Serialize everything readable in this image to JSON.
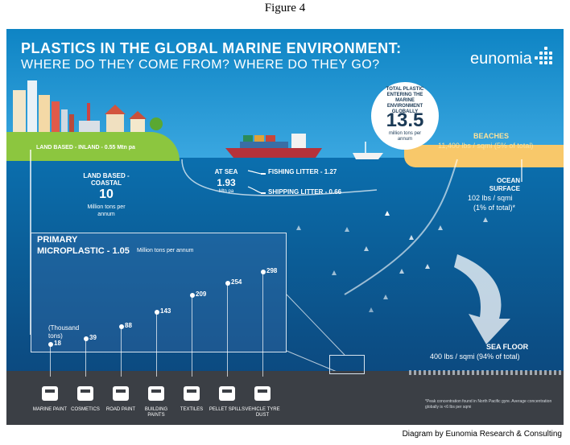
{
  "figure_label": "Figure 4",
  "title": {
    "line1": "PLASTICS IN THE GLOBAL MARINE ENVIRONMENT:",
    "line2": "WHERE DO THEY COME FROM? WHERE DO THEY GO?"
  },
  "brand": "eunomia",
  "total": {
    "label": "TOTAL PLASTIC ENTERING THE MARINE ENVIRONMENT GLOBALLY",
    "value": "13.5",
    "unit": "million tons per annum"
  },
  "sources": {
    "land_inland": "LAND BASED - INLAND - 0.55 Mtn pa",
    "land_coastal_title": "LAND BASED - COASTAL",
    "land_coastal_value": "10",
    "land_coastal_unit": "Million tons per annum",
    "at_sea_title": "AT SEA",
    "at_sea_value": "1.93",
    "at_sea_unit": "Mtn pa",
    "fishing": "FISHING LITTER - 1.27",
    "shipping": "SHIPPING LITTER - 0.66"
  },
  "sinks": {
    "beaches_title": "BEACHES",
    "beaches_value": "11,400 lbs / sqmi  (5% of total)",
    "ocean_title_1": "OCEAN",
    "ocean_title_2": "SURFACE",
    "ocean_value": "102 lbs / sqmi",
    "ocean_pct": "(1% of total)*",
    "seafloor_title": "SEA FLOOR",
    "seafloor_value": "400 lbs / sqmi  (94% of total)"
  },
  "microplastic": {
    "title_1": "PRIMARY",
    "title_2": "MICROPLASTIC - 1.05",
    "unit": "Million tons per annum",
    "unit_note": "(Thousand tons)",
    "items": [
      {
        "label": "MARINE PAINT",
        "value": 18
      },
      {
        "label": "COSMETICS",
        "value": 39
      },
      {
        "label": "ROAD PAINT",
        "value": 88
      },
      {
        "label": "BUILDING PAINTS",
        "value": 143
      },
      {
        "label": "TEXTILES",
        "value": 209
      },
      {
        "label": "PELLET SPILLS",
        "value": 254
      },
      {
        "label": "VEHICLE TYRE DUST",
        "value": 298
      }
    ]
  },
  "footnote": "*Peak concentration found in North Pacific gyre. Average concentration globally is <6 lbs per sqmi",
  "credit": "Diagram by Eunomia Research & Consulting",
  "colors": {
    "sky": "#0e84c4",
    "sea": "#0b5e98",
    "land": "#8cc63f",
    "beach": "#f8c86a",
    "seafloor": "#3b3f45"
  }
}
